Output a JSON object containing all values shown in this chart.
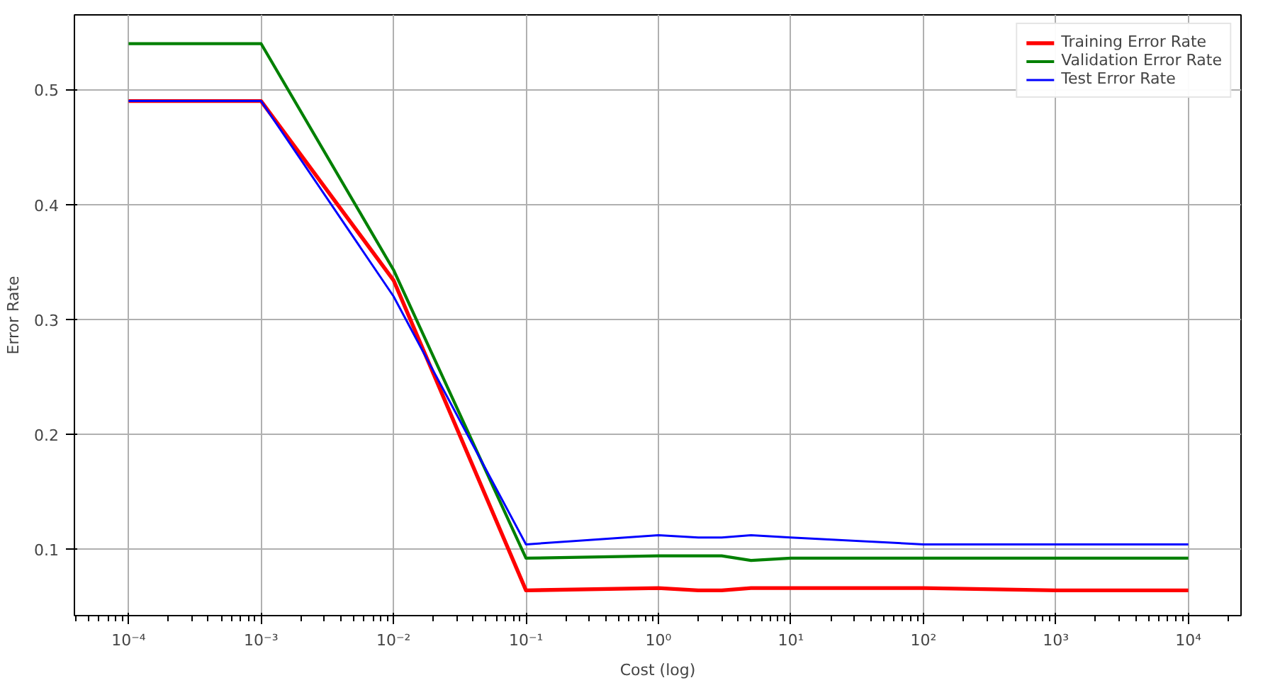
{
  "chart_data": {
    "type": "line",
    "xlabel": "Cost (log)",
    "ylabel": "Error Rate",
    "log": "x",
    "x": [
      0.0001,
      0.001,
      0.01,
      0.1,
      1,
      2,
      3,
      5,
      10,
      100,
      1000,
      10000
    ],
    "series": [
      {
        "name": "Training Error Rate",
        "color": "#ff0000",
        "values": [
          0.49,
          0.49,
          0.334,
          0.064,
          0.066,
          0.064,
          0.064,
          0.066,
          0.066,
          0.066,
          0.064,
          0.064
        ]
      },
      {
        "name": "Validation Error Rate",
        "color": "#008000",
        "values": [
          0.54,
          0.54,
          0.343,
          0.092,
          0.094,
          0.094,
          0.094,
          0.09,
          0.092,
          0.092,
          0.092,
          0.092
        ]
      },
      {
        "name": "Test Error Rate",
        "color": "#0000ff",
        "values": [
          0.49,
          0.49,
          0.32,
          0.104,
          0.112,
          0.11,
          0.11,
          0.112,
          0.11,
          0.104,
          0.104,
          0.104
        ]
      }
    ],
    "xlim": [
      3.9e-05,
      25000
    ],
    "ylim": [
      0.042,
      0.565
    ],
    "xticks": [
      {
        "value": 0.0001,
        "label": "10⁻⁴"
      },
      {
        "value": 0.001,
        "label": "10⁻³"
      },
      {
        "value": 0.01,
        "label": "10⁻²"
      },
      {
        "value": 0.1,
        "label": "10⁻¹"
      },
      {
        "value": 1,
        "label": "10⁰"
      },
      {
        "value": 10,
        "label": "10¹"
      },
      {
        "value": 100,
        "label": "10²"
      },
      {
        "value": 1000,
        "label": "10³"
      },
      {
        "value": 10000,
        "label": "10⁴"
      }
    ],
    "yticks": [
      0.1,
      0.2,
      0.3,
      0.4,
      0.5
    ],
    "grid": true,
    "legend": "top right",
    "marker": "none",
    "line_style": "solid"
  }
}
